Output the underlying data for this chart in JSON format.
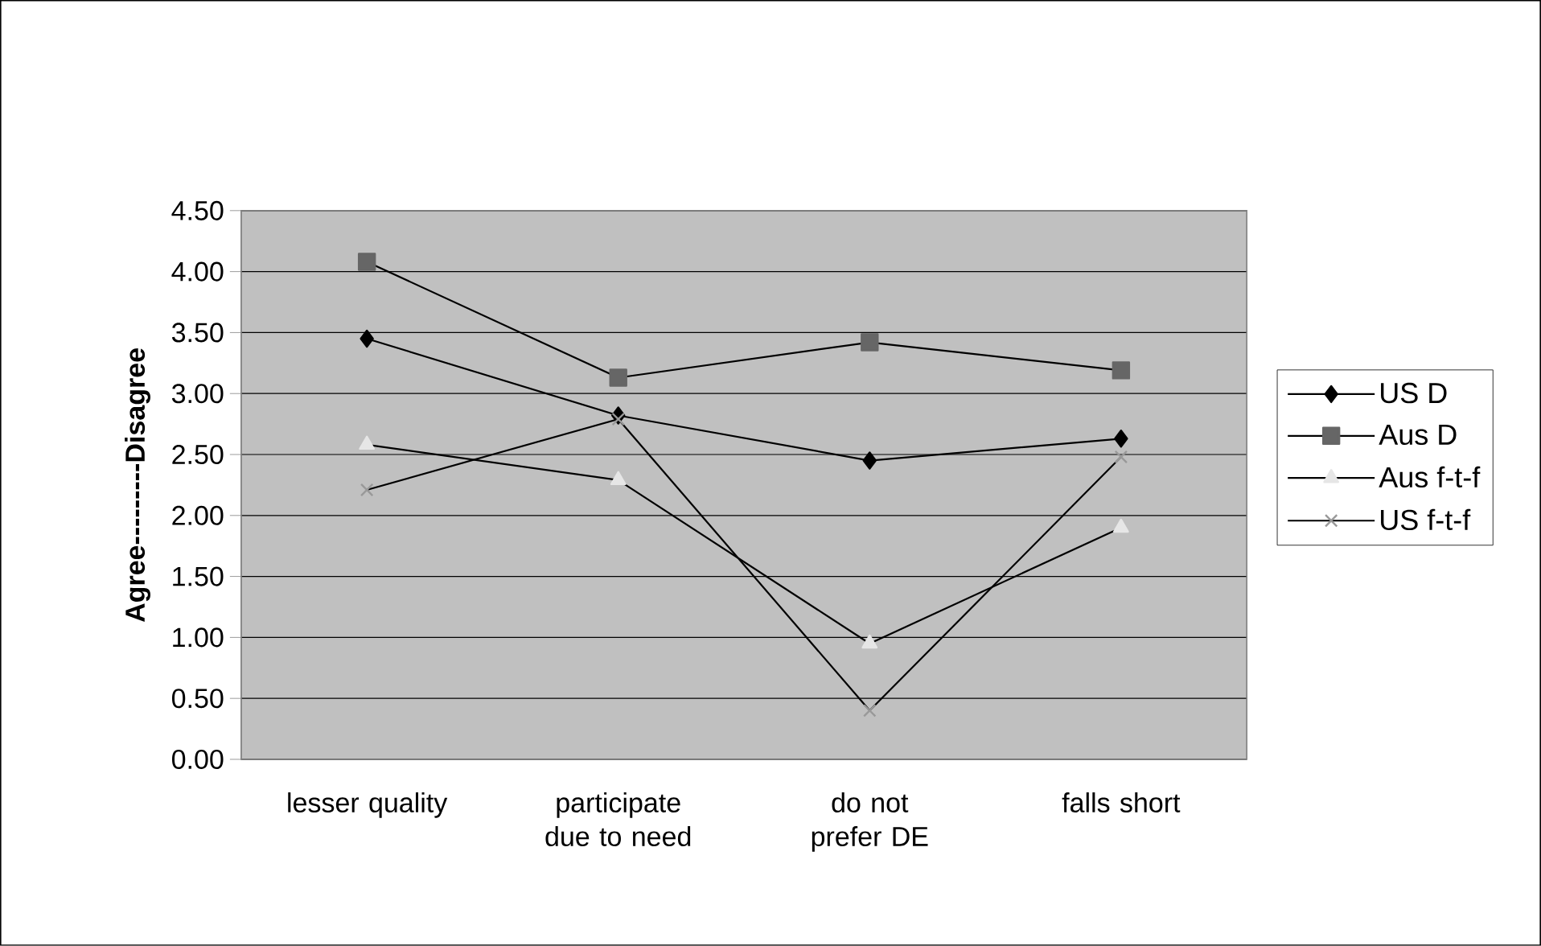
{
  "chart_data": {
    "type": "line",
    "ylabel": "Agree---------Disagree",
    "categories": [
      "lesser quality",
      "participate due to need",
      "do not prefer DE",
      "falls short"
    ],
    "series": [
      {
        "name": "US D",
        "color": "#000000",
        "marker": "diamond",
        "values": [
          3.45,
          2.82,
          2.45,
          2.63
        ]
      },
      {
        "name": "Aus D",
        "color": "#666666",
        "marker": "square",
        "values": [
          4.08,
          3.13,
          3.42,
          3.19
        ]
      },
      {
        "name": "Aus f-t-f",
        "color": "#e6e6e6",
        "marker": "triangle",
        "values": [
          2.58,
          2.29,
          0.95,
          1.9
        ]
      },
      {
        "name": "US f-t-f",
        "color": "#999999",
        "marker": "cross",
        "values": [
          2.21,
          2.79,
          0.4,
          2.48
        ]
      }
    ],
    "ylim": [
      0,
      4.5
    ],
    "yticks": [
      {
        "value": 0,
        "label": "0.00"
      },
      {
        "value": 0.5,
        "label": "0.50"
      },
      {
        "value": 1,
        "label": "1.00"
      },
      {
        "value": 1.5,
        "label": "1.50"
      },
      {
        "value": 2,
        "label": "2.00"
      },
      {
        "value": 2.5,
        "label": "2.50"
      },
      {
        "value": 3,
        "label": "3.00"
      },
      {
        "value": 3.5,
        "label": "3.50"
      },
      {
        "value": 4,
        "label": "4.00"
      },
      {
        "value": 4.5,
        "label": "4.50"
      }
    ],
    "grid": "y",
    "legend": "right",
    "line_style": "solid"
  }
}
